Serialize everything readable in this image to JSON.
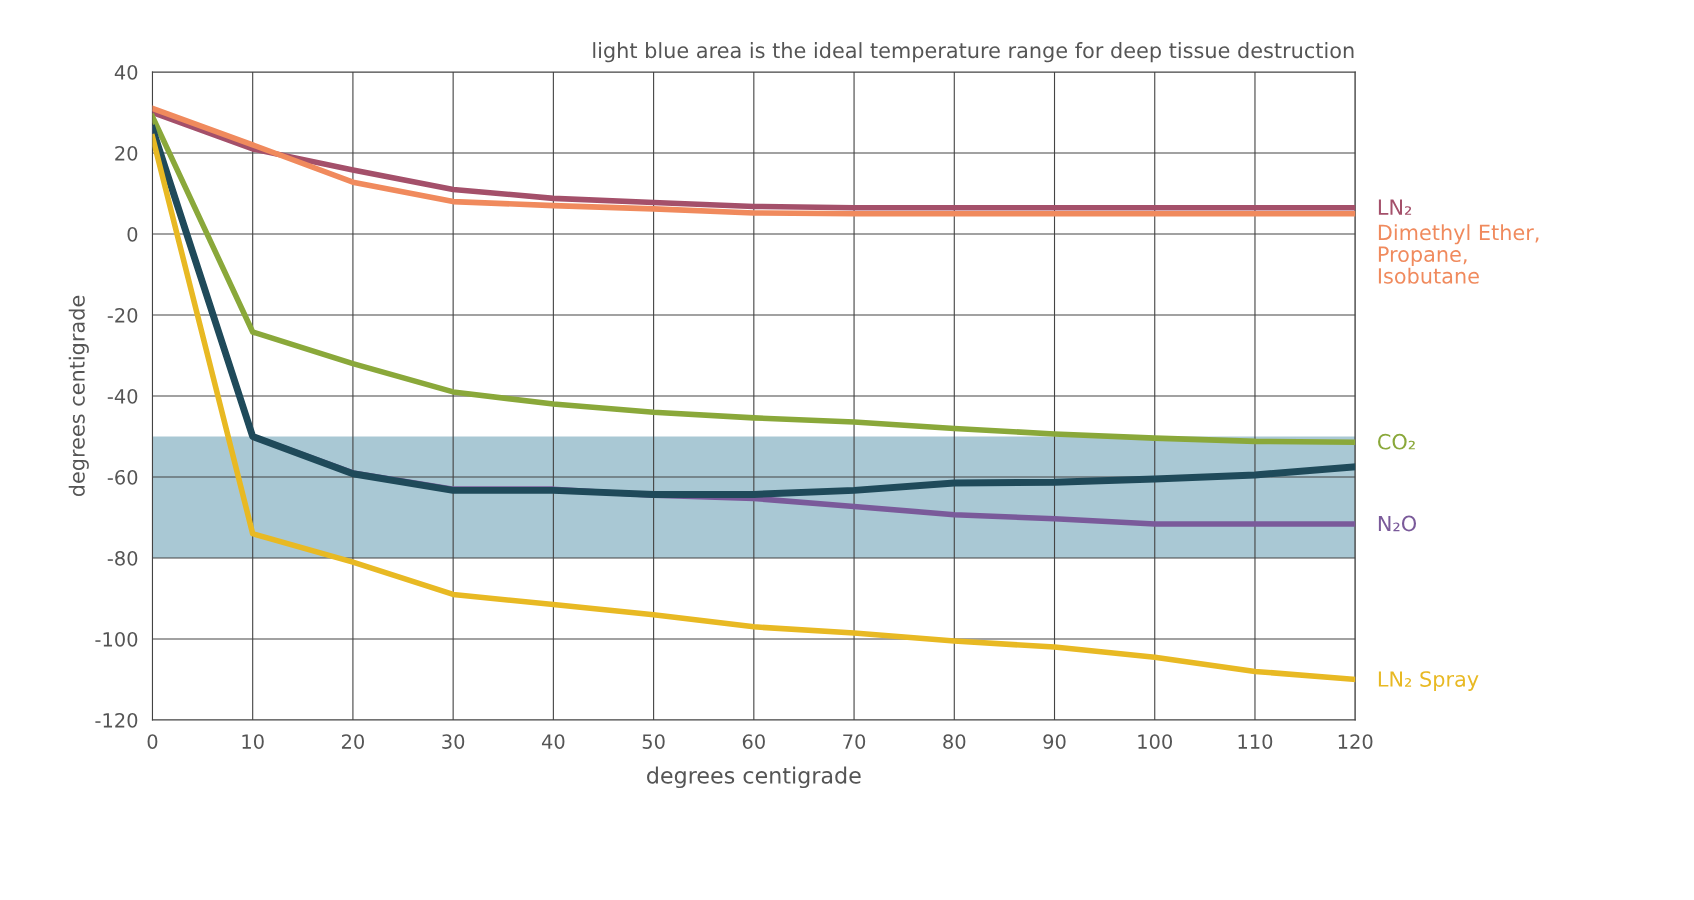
{
  "chart_data": {
    "type": "line",
    "xlabel": "degrees centigrade",
    "ylabel": "degrees centigrade",
    "annotations": [
      "light blue area is the ideal temperature range for deep tissue destruction"
    ],
    "x": [
      0,
      10,
      20,
      30,
      40,
      50,
      60,
      70,
      80,
      90,
      100,
      110,
      120
    ],
    "series": [
      {
        "name": "LN₂",
        "color": "#a4506a",
        "values": [
          30,
          21,
          15.8,
          11,
          8.8,
          7.8,
          6.8,
          6.5,
          6.5,
          6.5,
          6.5,
          6.5,
          6.5
        ]
      },
      {
        "name": "Dimethyl Ether,\nPropane,\nIsobutane",
        "color": "#f08a5d",
        "values": [
          31,
          22,
          12.8,
          8,
          7,
          6.2,
          5.2,
          5,
          5,
          5,
          5,
          5,
          5
        ]
      },
      {
        "name": "CO₂",
        "color": "#8aa83a",
        "values": [
          29,
          -24.2,
          -32,
          -39,
          -42,
          -44,
          -45.4,
          -46.4,
          -48,
          -49.4,
          -50.4,
          -51.2,
          -51.4
        ]
      },
      {
        "name": "N₂O",
        "color": "#7a5a9a",
        "values": [
          26,
          -50,
          -59,
          -63,
          -63,
          -64.5,
          -65.3,
          -67.3,
          -69.3,
          -70.3,
          -71.6,
          -71.6,
          -71.6
        ]
      },
      {
        "color": "#1f4a5a",
        "values": [
          26,
          -50,
          -59.2,
          -63.3,
          -63.3,
          -64.3,
          -64.3,
          -63.3,
          -61.5,
          -61.3,
          -60.5,
          -59.5,
          -57.5
        ]
      },
      {
        "name": "LN₂ Spray",
        "color": "#e8b923",
        "values": [
          24,
          -74,
          -81,
          -89,
          -91.5,
          -94,
          -97,
          -98.5,
          -100.5,
          -102,
          -104.5,
          -108,
          -110
        ]
      }
    ],
    "bands": [
      {
        "axis": "y",
        "from": -80,
        "to": -50,
        "color": "#a9c8d4"
      }
    ],
    "xlim": [
      0,
      120
    ],
    "xticks": [
      0,
      10,
      20,
      30,
      40,
      50,
      60,
      70,
      80,
      90,
      100,
      110,
      120
    ],
    "ylim": [
      -120,
      40
    ],
    "yticks": [
      -120,
      -100,
      -80,
      -60,
      -40,
      -20,
      0,
      20,
      40
    ],
    "grid": true,
    "legend": false,
    "marker": "none",
    "line_style": "solid"
  }
}
